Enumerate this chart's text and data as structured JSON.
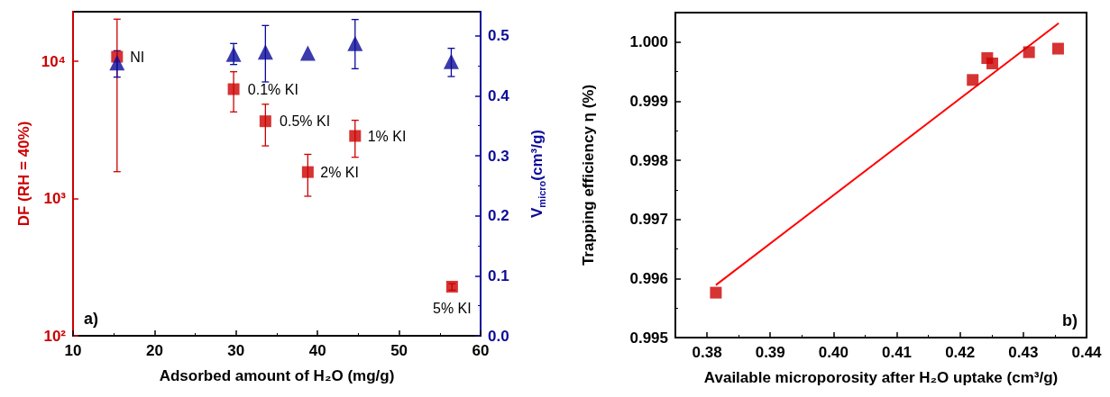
{
  "chart_data": [
    {
      "type": "scatter",
      "xlabel": "Adsorbed amount of H₂O (mg/g)",
      "ylabel": "DF (RH = 40%)",
      "y2label": "V$_{micro}$(cm³/g)",
      "xlim": [
        10,
        60
      ],
      "xticks": [
        10,
        20,
        30,
        40,
        50,
        60
      ],
      "log": "y",
      "ylim": [
        100,
        23000
      ],
      "yticks": [
        {
          "value": 100,
          "label": "10²"
        },
        {
          "value": 1000,
          "label": "10³"
        },
        {
          "value": 10000,
          "label": "10⁴"
        }
      ],
      "y2lim": [
        0,
        0.54
      ],
      "y2ticks": [
        {
          "value": 0,
          "label": "0.0"
        },
        {
          "value": 0.1,
          "label": "0.1"
        },
        {
          "value": 0.2,
          "label": "0.2"
        },
        {
          "value": 0.3,
          "label": "0.3"
        },
        {
          "value": 0.4,
          "label": "0.4"
        },
        {
          "value": 0.5,
          "label": "0.5"
        }
      ],
      "series": [
        {
          "marker": "square",
          "color": "#cc0000",
          "x": [
            15.4,
            29.7,
            33.6,
            38.8,
            44.6,
            56.5
          ],
          "values": [
            10800,
            6270,
            3660,
            1560,
            2860,
            228
          ],
          "errors": [
            [
              1570,
              20300
            ],
            [
              4280,
              8400
            ],
            [
              2420,
              4870
            ],
            [
              1040,
              2100
            ],
            [
              2000,
              3720
            ],
            [
              215,
              240
            ]
          ]
        },
        {
          "marker": "triangle",
          "color": "#0a0a9a",
          "axis": "y2",
          "x": [
            15.4,
            29.7,
            33.6,
            38.8,
            44.6,
            56.4
          ],
          "values": [
            0.455,
            0.469,
            0.473,
            0.471,
            0.487,
            0.457
          ],
          "errors": [
            [
              0.431,
              0.475
            ],
            [
              0.452,
              0.487
            ],
            [
              0.423,
              0.517
            ],
            null,
            [
              0.445,
              0.527
            ],
            [
              0.432,
              0.479
            ]
          ]
        }
      ],
      "annotations": [
        {
          "text": "NI",
          "x": 15.4,
          "y": 10800
        },
        {
          "text": "0.1% KI",
          "x": 29.7,
          "y": 6270
        },
        {
          "text": "0.5% KI",
          "x": 33.6,
          "y": 3660
        },
        {
          "text": "1% KI",
          "x": 44.6,
          "y": 2860
        },
        {
          "text": "2% KI",
          "x": 38.8,
          "y": 1560
        },
        {
          "text": "5% KI",
          "x": 56.5,
          "y": 228
        },
        "a)"
      ],
      "grid": false
    },
    {
      "type": "scatter",
      "xlabel": "Available microporosity after H₂O uptake (cm³/g)",
      "ylabel": "Trapping efficiency η (%)",
      "xlim": [
        0.375,
        0.44
      ],
      "xticks": [
        0.38,
        0.39,
        {
          "value": 0.4,
          "label": "0.40"
        },
        0.41,
        0.42,
        0.43,
        {
          "value": 0.44,
          "label": "0.44"
        }
      ],
      "ylim": [
        0.995,
        1.0005
      ],
      "yticks": [
        0.995,
        0.996,
        0.997,
        0.998,
        0.999,
        {
          "value": 1,
          "label": "1.000"
        }
      ],
      "series": [
        {
          "marker": "square",
          "color": "#cc0000",
          "x": [
            0.3814,
            0.422,
            0.4243,
            0.4251,
            0.4309,
            0.4355
          ],
          "values": [
            0.99576,
            0.99936,
            0.99973,
            0.99964,
            0.99983,
            0.99989
          ]
        },
        {
          "type": "line",
          "marker": "none",
          "color": "#ff0000",
          "x": [
            0.3814,
            0.4356
          ],
          "values": [
            0.99589,
            1.00032
          ]
        }
      ],
      "annotations": [
        "b)"
      ],
      "grid": false
    }
  ]
}
